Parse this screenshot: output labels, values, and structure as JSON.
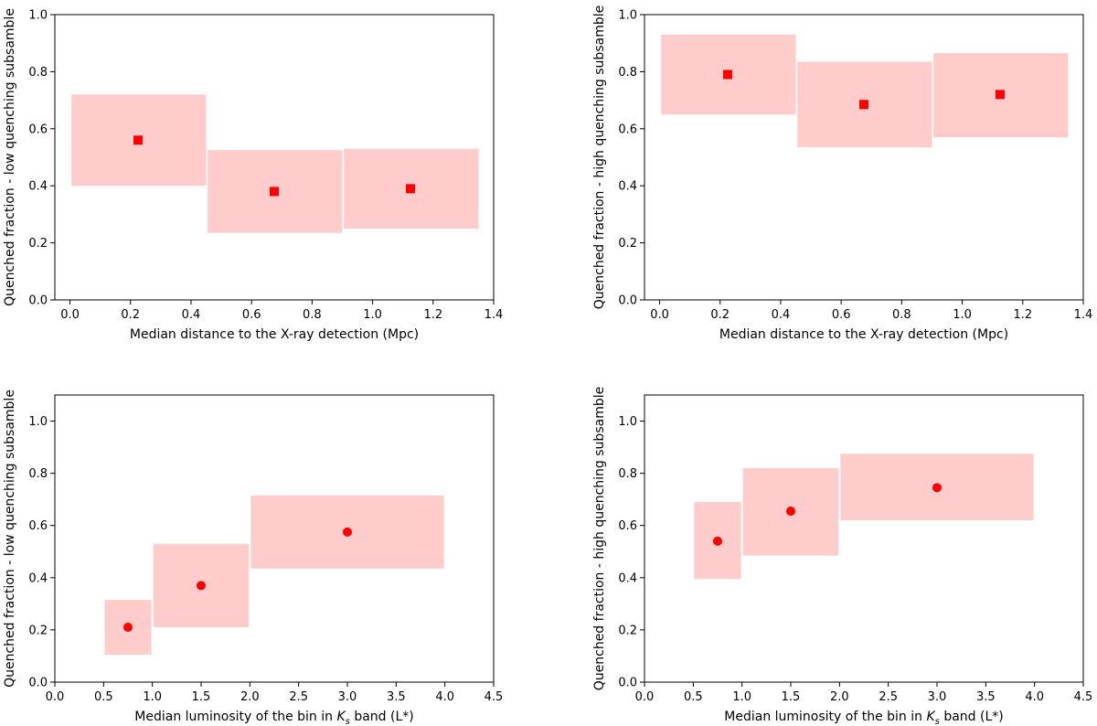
{
  "chart_data": [
    {
      "type": "scatter",
      "marker": "square",
      "xlabel": "Median distance to the X-ray detection (Mpc)",
      "ylabel": "Quenched fraction - low quenching subsamble",
      "xlim": [
        -0.05,
        1.4
      ],
      "ylim": [
        0.0,
        1.0
      ],
      "xticks": [
        "0.0",
        "0.2",
        "0.4",
        "0.6",
        "0.8",
        "1.0",
        "1.2",
        "1.4"
      ],
      "yticks": [
        "0.0",
        "0.2",
        "0.4",
        "0.6",
        "0.8",
        "1.0"
      ],
      "marker_color": "#ff0000",
      "box_color": "#ffcccc",
      "grid": false,
      "points": [
        {
          "x": 0.225,
          "y": 0.56,
          "xerr": [
            0.005,
            0.45
          ],
          "yerr": [
            0.4,
            0.72
          ]
        },
        {
          "x": 0.675,
          "y": 0.38,
          "xerr": [
            0.455,
            0.9
          ],
          "yerr": [
            0.235,
            0.525
          ]
        },
        {
          "x": 1.125,
          "y": 0.39,
          "xerr": [
            0.905,
            1.35
          ],
          "yerr": [
            0.25,
            0.53
          ]
        }
      ]
    },
    {
      "type": "scatter",
      "marker": "square",
      "xlabel": "Median distance to the X-ray detection (Mpc)",
      "ylabel": "Quenched fraction - high quenching subsamble",
      "xlim": [
        -0.05,
        1.4
      ],
      "ylim": [
        0.0,
        1.0
      ],
      "xticks": [
        "0.0",
        "0.2",
        "0.4",
        "0.6",
        "0.8",
        "1.0",
        "1.2",
        "1.4"
      ],
      "yticks": [
        "0.0",
        "0.2",
        "0.4",
        "0.6",
        "0.8",
        "1.0"
      ],
      "marker_color": "#ff0000",
      "box_color": "#ffcccc",
      "grid": false,
      "points": [
        {
          "x": 0.225,
          "y": 0.79,
          "xerr": [
            0.005,
            0.45
          ],
          "yerr": [
            0.65,
            0.93
          ]
        },
        {
          "x": 0.675,
          "y": 0.685,
          "xerr": [
            0.455,
            0.9
          ],
          "yerr": [
            0.535,
            0.835
          ]
        },
        {
          "x": 1.125,
          "y": 0.72,
          "xerr": [
            0.905,
            1.35
          ],
          "yerr": [
            0.57,
            0.865
          ]
        }
      ]
    },
    {
      "type": "scatter",
      "marker": "circle",
      "xlabel": "Median luminosity of the bin in K_s band (L*)",
      "xlabel_parts": [
        "Median luminosity of the bin in ",
        "K",
        "s",
        " band (L*)"
      ],
      "ylabel": "Quenched fraction - low quenching subsamble",
      "xlim": [
        0.0,
        4.5
      ],
      "ylim": [
        0.0,
        1.1
      ],
      "xticks": [
        "0.0",
        "0.5",
        "1.0",
        "1.5",
        "2.0",
        "2.5",
        "3.0",
        "3.5",
        "4.0",
        "4.5"
      ],
      "yticks": [
        "0.0",
        "0.2",
        "0.4",
        "0.6",
        "0.8",
        "1.0"
      ],
      "marker_color": "#ff0000",
      "box_color": "#ffcccc",
      "grid": false,
      "points": [
        {
          "x": 0.75,
          "y": 0.21,
          "xerr": [
            0.51,
            0.99
          ],
          "yerr": [
            0.105,
            0.315
          ]
        },
        {
          "x": 1.5,
          "y": 0.37,
          "xerr": [
            1.01,
            1.99
          ],
          "yerr": [
            0.21,
            0.53
          ]
        },
        {
          "x": 3.0,
          "y": 0.575,
          "xerr": [
            2.01,
            3.99
          ],
          "yerr": [
            0.435,
            0.715
          ]
        }
      ]
    },
    {
      "type": "scatter",
      "marker": "circle",
      "xlabel": "Median luminosity of the bin in K_s band (L*)",
      "xlabel_parts": [
        "Median luminosity of the bin in ",
        "K",
        "s",
        " band (L*)"
      ],
      "ylabel": "Quenched fraction - high quenching subsamble",
      "xlim": [
        0.0,
        4.5
      ],
      "ylim": [
        0.0,
        1.1
      ],
      "xticks": [
        "0.0",
        "0.5",
        "1.0",
        "1.5",
        "2.0",
        "2.5",
        "3.0",
        "3.5",
        "4.0",
        "4.5"
      ],
      "yticks": [
        "0.0",
        "0.2",
        "0.4",
        "0.6",
        "0.8",
        "1.0"
      ],
      "marker_color": "#ff0000",
      "box_color": "#ffcccc",
      "grid": false,
      "points": [
        {
          "x": 0.75,
          "y": 0.54,
          "xerr": [
            0.51,
            0.99
          ],
          "yerr": [
            0.395,
            0.69
          ]
        },
        {
          "x": 1.5,
          "y": 0.655,
          "xerr": [
            1.01,
            1.99
          ],
          "yerr": [
            0.485,
            0.82
          ]
        },
        {
          "x": 3.0,
          "y": 0.745,
          "xerr": [
            2.01,
            3.99
          ],
          "yerr": [
            0.62,
            0.875
          ]
        }
      ]
    }
  ]
}
